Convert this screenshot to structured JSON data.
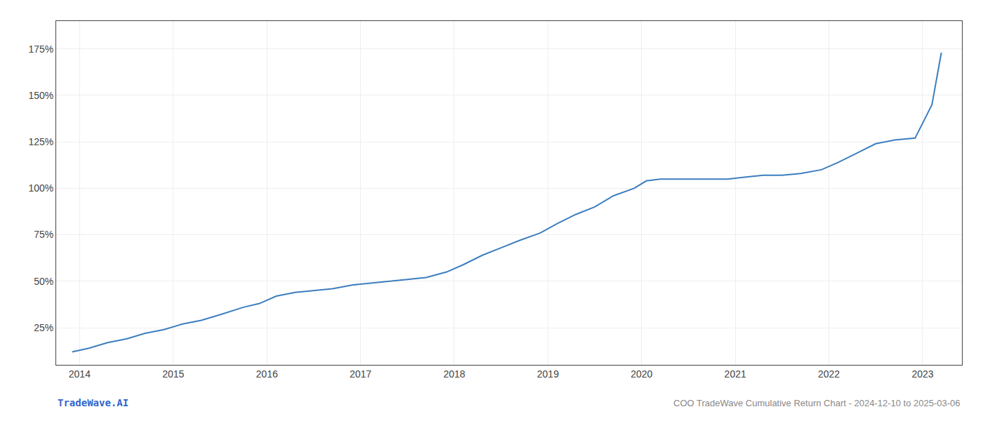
{
  "chart_data": {
    "type": "line",
    "title": "COO TradeWave Cumulative Return Chart - 2024-12-10 to 2025-03-06",
    "annotations": [
      {
        "text": "TradeWave.AI",
        "color": "#3366cc"
      }
    ],
    "x": [
      2013.92,
      2014.1,
      2014.3,
      2014.5,
      2014.7,
      2014.9,
      2015.1,
      2015.3,
      2015.5,
      2015.75,
      2015.92,
      2016.1,
      2016.3,
      2016.5,
      2016.7,
      2016.92,
      2017.1,
      2017.3,
      2017.5,
      2017.7,
      2017.92,
      2018.1,
      2018.3,
      2018.5,
      2018.7,
      2018.92,
      2019.1,
      2019.3,
      2019.5,
      2019.7,
      2019.92,
      2020.05,
      2020.2,
      2020.5,
      2020.75,
      2020.92,
      2021.1,
      2021.3,
      2021.5,
      2021.7,
      2021.92,
      2022.1,
      2022.3,
      2022.5,
      2022.7,
      2022.92,
      2023.1,
      2023.2
    ],
    "values": [
      12,
      14,
      17,
      19,
      22,
      24,
      27,
      29,
      32,
      36,
      38,
      42,
      44,
      45,
      46,
      48,
      49,
      50,
      51,
      52,
      55,
      59,
      64,
      68,
      72,
      76,
      81,
      86,
      90,
      96,
      100,
      104,
      105,
      105,
      105,
      105,
      106,
      107,
      107,
      108,
      110,
      114,
      119,
      124,
      126,
      127,
      145,
      173
    ],
    "color": "#3d7ebf",
    "xlim": [
      2013.75,
      2023.42
    ],
    "xticks": [
      2014,
      2015,
      2016,
      2017,
      2018,
      2019,
      2020,
      2021,
      2022,
      2023
    ],
    "ylim": [
      5,
      190
    ],
    "yticks": [
      {
        "value": 25,
        "label": "25%"
      },
      {
        "value": 50,
        "label": "50%"
      },
      {
        "value": 75,
        "label": "75%"
      },
      {
        "value": 100,
        "label": "100%"
      },
      {
        "value": 125,
        "label": "125%"
      },
      {
        "value": 150,
        "label": "150%"
      },
      {
        "value": 175,
        "label": "175%"
      }
    ],
    "grid": true
  }
}
